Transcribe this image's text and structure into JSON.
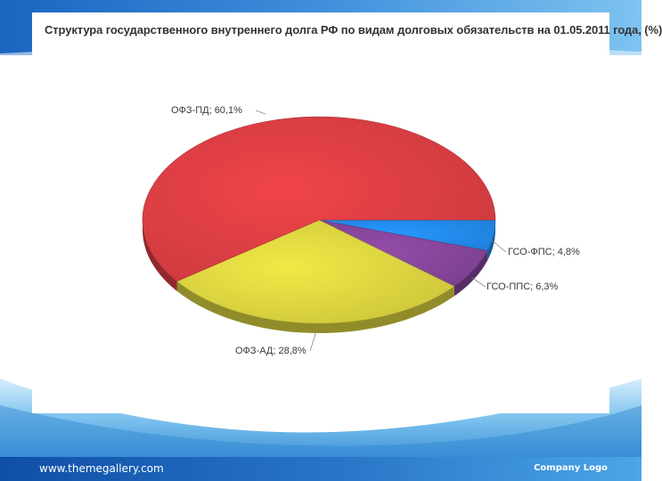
{
  "colors": {
    "accent_dark": "#1258b3",
    "accent_light": "#58b4ea",
    "footer_text": "#ffffff"
  },
  "footer": {
    "website": "www.themegallery.com",
    "company_logo": "Company Logo"
  },
  "chart_data": {
    "type": "pie",
    "title": "Структура государственного внутреннего долга РФ по видам долговых обязательств на 01.05.2011 года, (%)",
    "slices": [
      {
        "name": "ОФЗ-ПД",
        "value": 60.1,
        "label": "ОФЗ-ПД; 60,1%",
        "color": "#c8393e"
      },
      {
        "name": "ГСО-ФПС",
        "value": 4.8,
        "label": "ГСО-ФПС; 4,8%",
        "color": "#1f7fd8"
      },
      {
        "name": "ГСО-ППС",
        "value": 6.3,
        "label": "ГСО-ППС; 6,3%",
        "color": "#7a3f8c"
      },
      {
        "name": "ОФЗ-АД",
        "value": 28.8,
        "label": "ОФЗ-АД; 28,8%",
        "color": "#c9c23a"
      }
    ],
    "legend": "none",
    "style": "3d-tilted"
  }
}
